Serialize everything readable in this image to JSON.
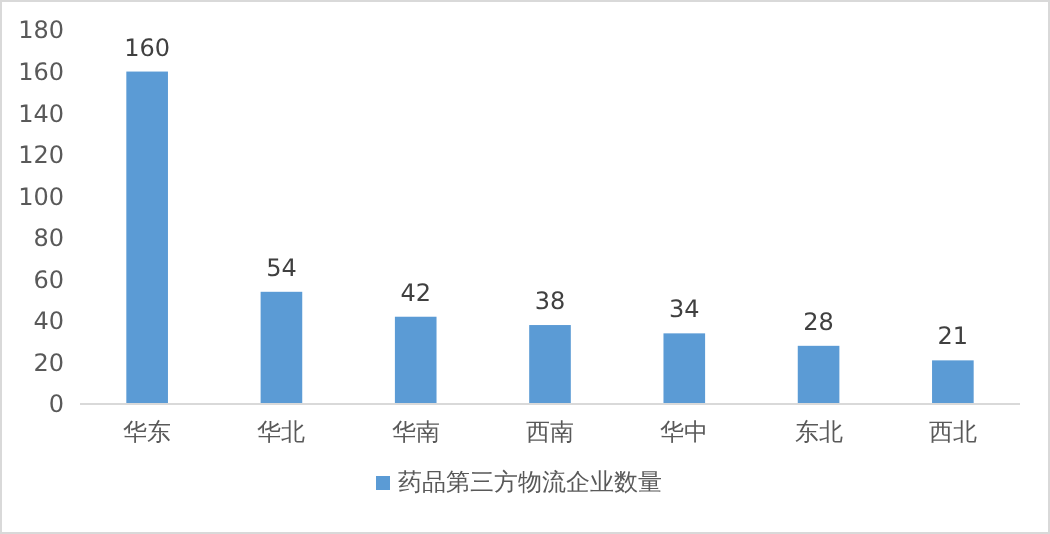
{
  "chart_data": {
    "type": "bar",
    "categories": [
      "华东",
      "华北",
      "华南",
      "西南",
      "华中",
      "东北",
      "西北"
    ],
    "series": [
      {
        "name": "药品第三方物流企业数量",
        "color": "#5b9bd5",
        "values": [
          160,
          54,
          42,
          38,
          34,
          28,
          21
        ]
      }
    ],
    "ylim": [
      0,
      180
    ],
    "yticks": [
      0,
      20,
      40,
      60,
      80,
      100,
      120,
      140,
      160,
      180
    ],
    "data_labels": true,
    "grid": false,
    "legend": "bottom"
  }
}
